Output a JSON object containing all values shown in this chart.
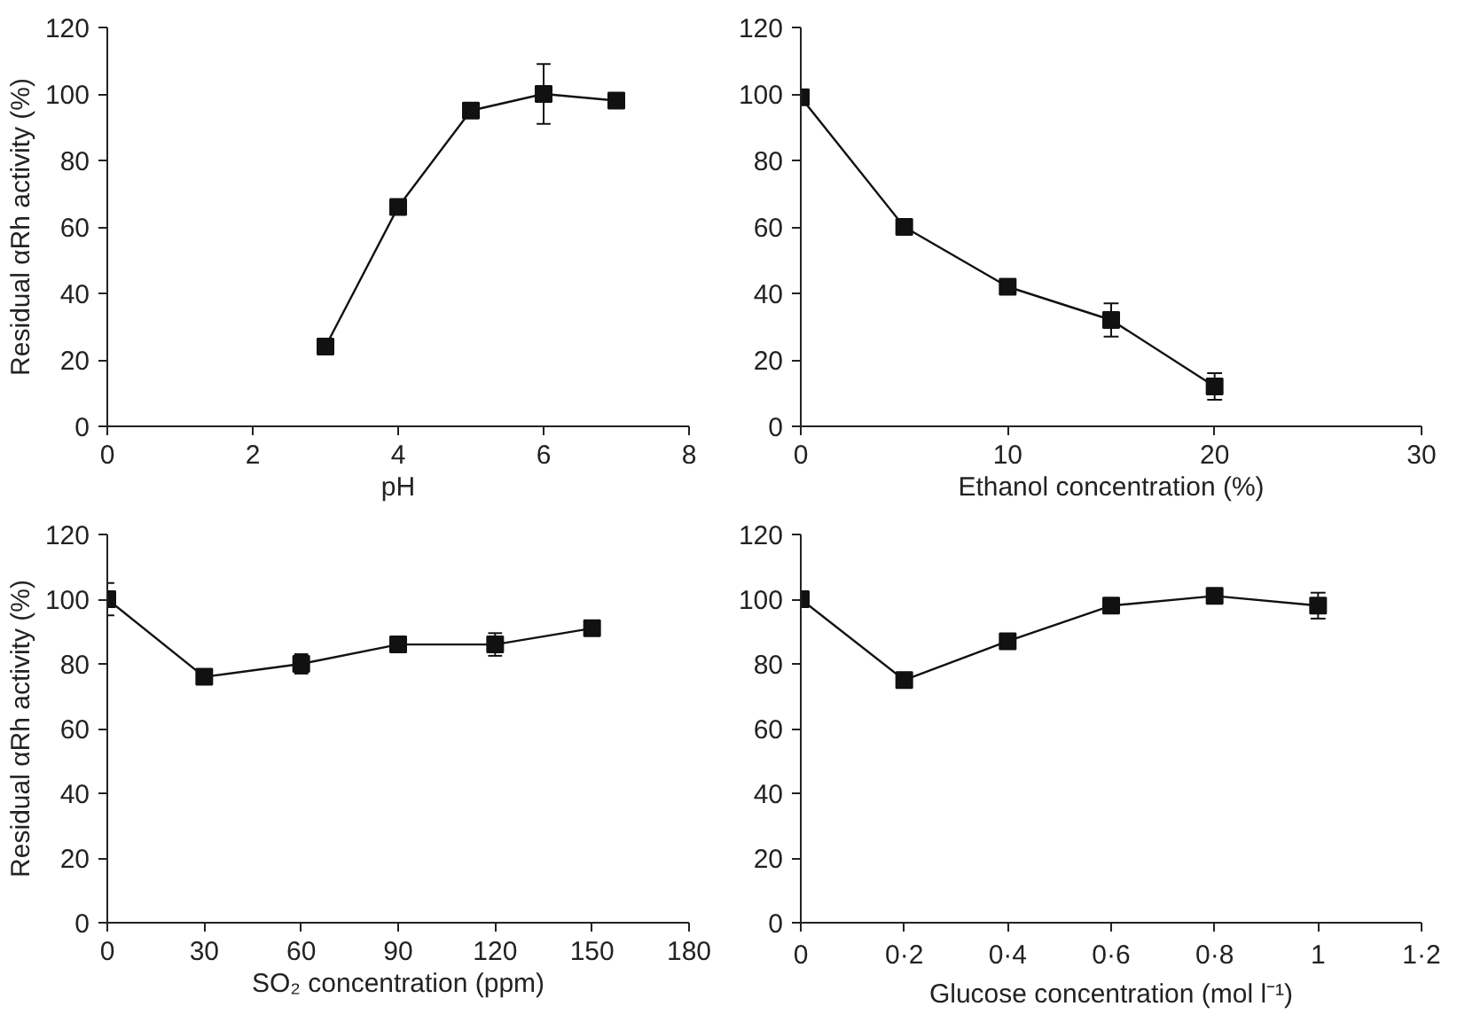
{
  "chart_data": [
    {
      "type": "line",
      "xlabel": "pH",
      "ylabel": "Residual αRh activity (%)",
      "x": [
        3,
        4,
        5,
        6,
        7
      ],
      "xlim": [
        0,
        8
      ],
      "xticks": [
        0,
        2,
        4,
        6,
        8
      ],
      "ylim": [
        0,
        120
      ],
      "yticks": [
        0,
        20,
        40,
        60,
        80,
        100,
        120
      ],
      "marker": "square",
      "line_style": "solid",
      "grid": false,
      "series": [
        {
          "color": "#111111",
          "values": [
            24,
            66,
            95,
            100,
            98
          ],
          "errors": [
            null,
            null,
            null,
            9,
            null
          ]
        }
      ]
    },
    {
      "type": "line",
      "xlabel": "Ethanol concentration (%)",
      "x": [
        0,
        5,
        10,
        15,
        20
      ],
      "xlim": [
        0,
        30
      ],
      "xticks": [
        0,
        10,
        20,
        30
      ],
      "ylim": [
        0,
        120
      ],
      "yticks": [
        0,
        20,
        40,
        60,
        80,
        100,
        120
      ],
      "marker": "square",
      "line_style": "solid",
      "grid": false,
      "series": [
        {
          "color": "#111111",
          "values": [
            99,
            60,
            42,
            32,
            12
          ],
          "errors": [
            null,
            null,
            2,
            5,
            4
          ]
        }
      ]
    },
    {
      "type": "line",
      "xlabel": "SO₂ concentration (ppm)",
      "ylabel": "Residual αRh activity (%)",
      "x": [
        0,
        30,
        60,
        90,
        120,
        150
      ],
      "xlim": [
        0,
        180
      ],
      "xticks": [
        0,
        30,
        60,
        90,
        120,
        150,
        180
      ],
      "ylim": [
        0,
        120
      ],
      "yticks": [
        0,
        20,
        40,
        60,
        80,
        100,
        120
      ],
      "marker": "square",
      "line_style": "solid",
      "grid": false,
      "series": [
        {
          "color": "#111111",
          "values": [
            100,
            76,
            80,
            86,
            86,
            91
          ],
          "errors": [
            5,
            null,
            3,
            null,
            3.5,
            null
          ]
        }
      ]
    },
    {
      "type": "line",
      "xlabel": "Glucose concentration (mol l⁻¹)",
      "x": [
        0,
        0.2,
        0.4,
        0.6,
        0.8,
        1
      ],
      "xlim": [
        0,
        1.2
      ],
      "xticks": [
        0,
        {
          "value": 0.2,
          "label": "0·2"
        },
        {
          "value": 0.4,
          "label": "0·4"
        },
        {
          "value": 0.6,
          "label": "0·6"
        },
        {
          "value": 0.8,
          "label": "0·8"
        },
        1,
        {
          "value": 1.2,
          "label": "1·2"
        }
      ],
      "ylim": [
        0,
        120
      ],
      "yticks": [
        0,
        20,
        40,
        60,
        80,
        100,
        120
      ],
      "marker": "square",
      "line_style": "solid",
      "grid": false,
      "series": [
        {
          "color": "#111111",
          "values": [
            100,
            75,
            87,
            98,
            101,
            98
          ],
          "errors": [
            null,
            null,
            null,
            null,
            null,
            4
          ]
        }
      ]
    }
  ]
}
